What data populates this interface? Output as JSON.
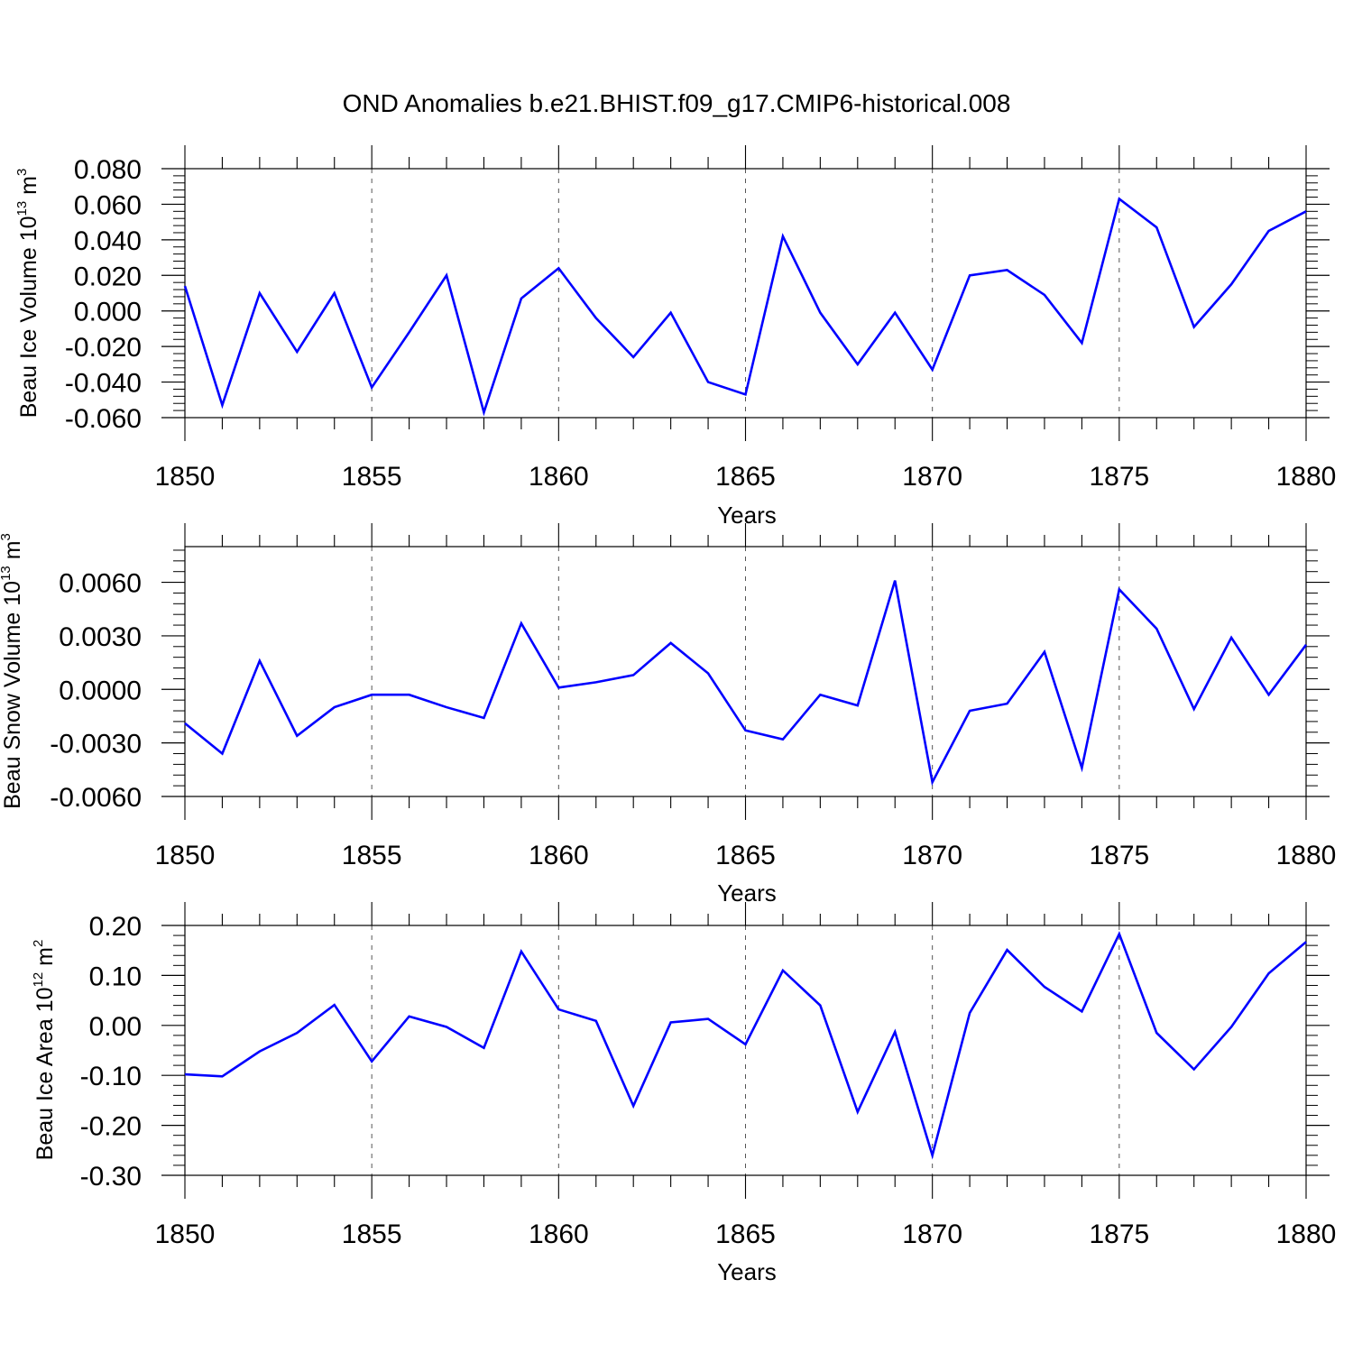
{
  "title": "OND Anomalies b.e21.BHIST.f09_g17.CMIP6-historical.008",
  "colors": {
    "series": "#0000ff",
    "axis": "#000000",
    "grid": "#555555"
  },
  "chart_data": [
    {
      "type": "line",
      "ylabel_main": "Beau Ice Volume 10",
      "ylabel_exp": "13",
      "ylabel_unit": " m",
      "ylabel_unit_exp": "3",
      "xlabel": "Years",
      "xlim": [
        1850,
        1880
      ],
      "ylim": [
        -0.06,
        0.08
      ],
      "ytick_values": [
        -0.06,
        -0.04,
        -0.02,
        0.0,
        0.02,
        0.04,
        0.06,
        0.08
      ],
      "ytick_labels": [
        "-0.060",
        "-0.040",
        "-0.020",
        "0.000",
        "0.020",
        "0.040",
        "0.060",
        "0.080"
      ],
      "xticks": [
        "1850",
        "1855",
        "1860",
        "1865",
        "1870",
        "1875",
        "1880"
      ],
      "grid": "vertical dashed at labeled years",
      "series": [
        {
          "x": [
            1850,
            1851,
            1852,
            1853,
            1854,
            1855,
            1856,
            1857,
            1858,
            1859,
            1860,
            1861,
            1862,
            1863,
            1864,
            1865,
            1866,
            1867,
            1868,
            1869,
            1870,
            1871,
            1872,
            1873,
            1874,
            1875,
            1876,
            1877,
            1878,
            1879,
            1880
          ],
          "values": [
            0.014,
            -0.053,
            0.01,
            -0.023,
            0.01,
            -0.043,
            -0.012,
            0.02,
            -0.057,
            0.007,
            0.024,
            -0.004,
            -0.026,
            -0.001,
            -0.04,
            -0.047,
            0.042,
            -0.001,
            -0.03,
            -0.001,
            -0.033,
            0.02,
            0.023,
            0.009,
            -0.018,
            0.063,
            0.047,
            -0.009,
            0.015,
            0.045,
            0.056
          ]
        }
      ]
    },
    {
      "type": "line",
      "ylabel_main": "Beau Snow Volume 10",
      "ylabel_exp": "13",
      "ylabel_unit": " m",
      "ylabel_unit_exp": "3",
      "xlabel": "Years",
      "xlim": [
        1850,
        1880
      ],
      "ylim": [
        -0.006,
        0.008
      ],
      "ytick_values": [
        -0.006,
        -0.003,
        0.0,
        0.003,
        0.006
      ],
      "ytick_labels": [
        "-0.0060",
        "-0.0030",
        "0.0000",
        "0.0030",
        "0.0060"
      ],
      "xticks": [
        "1850",
        "1855",
        "1860",
        "1865",
        "1870",
        "1875",
        "1880"
      ],
      "grid": "vertical dashed at labeled years",
      "series": [
        {
          "x": [
            1850,
            1851,
            1852,
            1853,
            1854,
            1855,
            1856,
            1857,
            1858,
            1859,
            1860,
            1861,
            1862,
            1863,
            1864,
            1865,
            1866,
            1867,
            1868,
            1869,
            1870,
            1871,
            1872,
            1873,
            1874,
            1875,
            1876,
            1877,
            1878,
            1879,
            1880
          ],
          "values": [
            -0.0019,
            -0.0036,
            0.0016,
            -0.0026,
            -0.001,
            -0.0003,
            -0.0003,
            -0.001,
            -0.0016,
            0.0037,
            0.0001,
            0.0004,
            0.0008,
            0.0026,
            0.0009,
            -0.0023,
            -0.0028,
            -0.0003,
            -0.0009,
            0.0061,
            -0.0052,
            -0.0012,
            -0.0008,
            0.0021,
            -0.0044,
            0.0056,
            0.0034,
            -0.0011,
            0.0029,
            -0.0003,
            0.0025
          ]
        }
      ]
    },
    {
      "type": "line",
      "ylabel_main": "Beau Ice Area 10",
      "ylabel_exp": "12",
      "ylabel_unit": " m",
      "ylabel_unit_exp": "2",
      "xlabel": "Years",
      "xlim": [
        1850,
        1880
      ],
      "ylim": [
        -0.3,
        0.2
      ],
      "ytick_values": [
        -0.3,
        -0.2,
        -0.1,
        0.0,
        0.1,
        0.2
      ],
      "ytick_labels": [
        "-0.30",
        "-0.20",
        "-0.10",
        "0.00",
        "0.10",
        "0.20"
      ],
      "xticks": [
        "1850",
        "1855",
        "1860",
        "1865",
        "1870",
        "1875",
        "1880"
      ],
      "grid": "vertical dashed at labeled years",
      "series": [
        {
          "x": [
            1850,
            1851,
            1852,
            1853,
            1854,
            1855,
            1856,
            1857,
            1858,
            1859,
            1860,
            1861,
            1862,
            1863,
            1864,
            1865,
            1866,
            1867,
            1868,
            1869,
            1870,
            1871,
            1872,
            1873,
            1874,
            1875,
            1876,
            1877,
            1878,
            1879,
            1880
          ],
          "values": [
            -0.098,
            -0.102,
            -0.052,
            -0.015,
            0.041,
            -0.072,
            0.018,
            -0.003,
            -0.045,
            0.148,
            0.032,
            0.009,
            -0.161,
            0.006,
            0.013,
            -0.038,
            0.11,
            0.04,
            -0.173,
            -0.013,
            -0.26,
            0.025,
            0.151,
            0.077,
            0.028,
            0.183,
            -0.015,
            -0.088,
            -0.003,
            0.104,
            0.167
          ]
        }
      ]
    }
  ]
}
